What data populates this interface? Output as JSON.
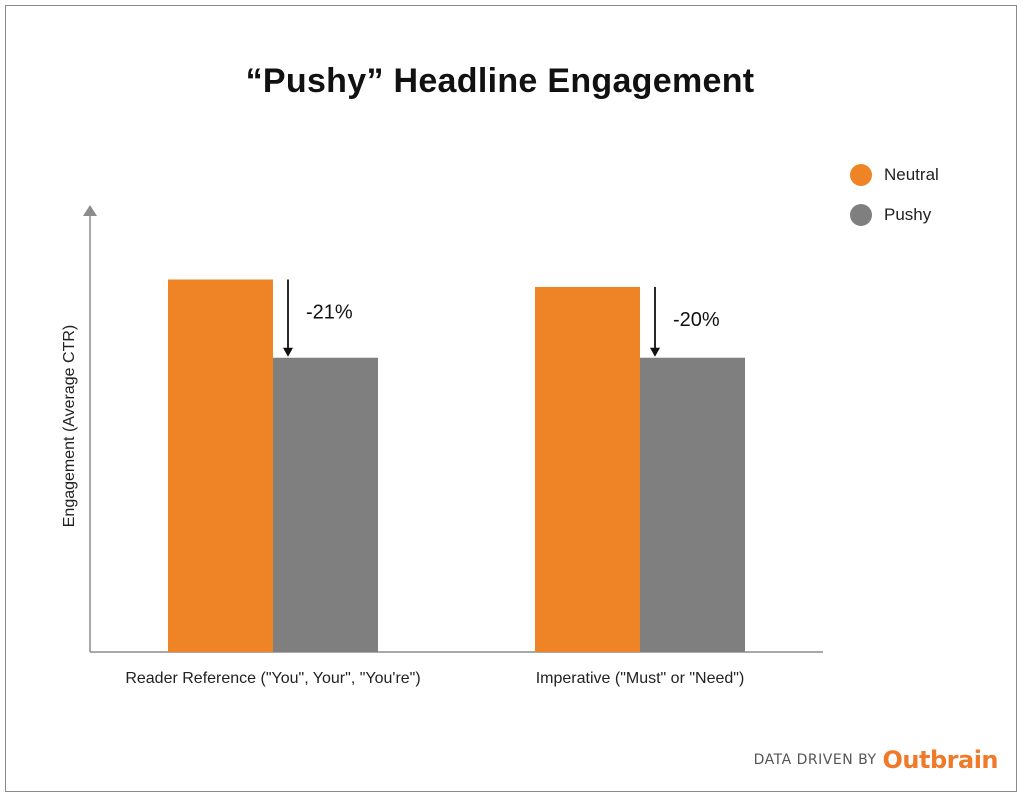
{
  "colors": {
    "neutral": "#ee8425",
    "pushy": "#7f7f7f",
    "axis": "#8c8c8c",
    "brand": "#ee7a2a"
  },
  "chart_data": {
    "type": "bar",
    "title": "“Pushy” Headline Engagement",
    "ylabel": "Engagement (Average CTR)",
    "xlabel": "",
    "categories": [
      "Reader Reference (\"You\", Your\", \"You're\")",
      "Imperative (\"Must\" or \"Need\")"
    ],
    "series": [
      {
        "name": "Neutral",
        "values": [
          1.0,
          0.98
        ]
      },
      {
        "name": "Pushy",
        "values": [
          0.79,
          0.79
        ]
      }
    ],
    "annotations": [
      "-21%",
      "-20%"
    ],
    "ylim": [
      0,
      1.2
    ],
    "yticks_shown": false,
    "grid": false,
    "legend_position": "top-right"
  },
  "footer": {
    "text": "DATA DRIVEN BY",
    "brand": "Outbrain"
  }
}
